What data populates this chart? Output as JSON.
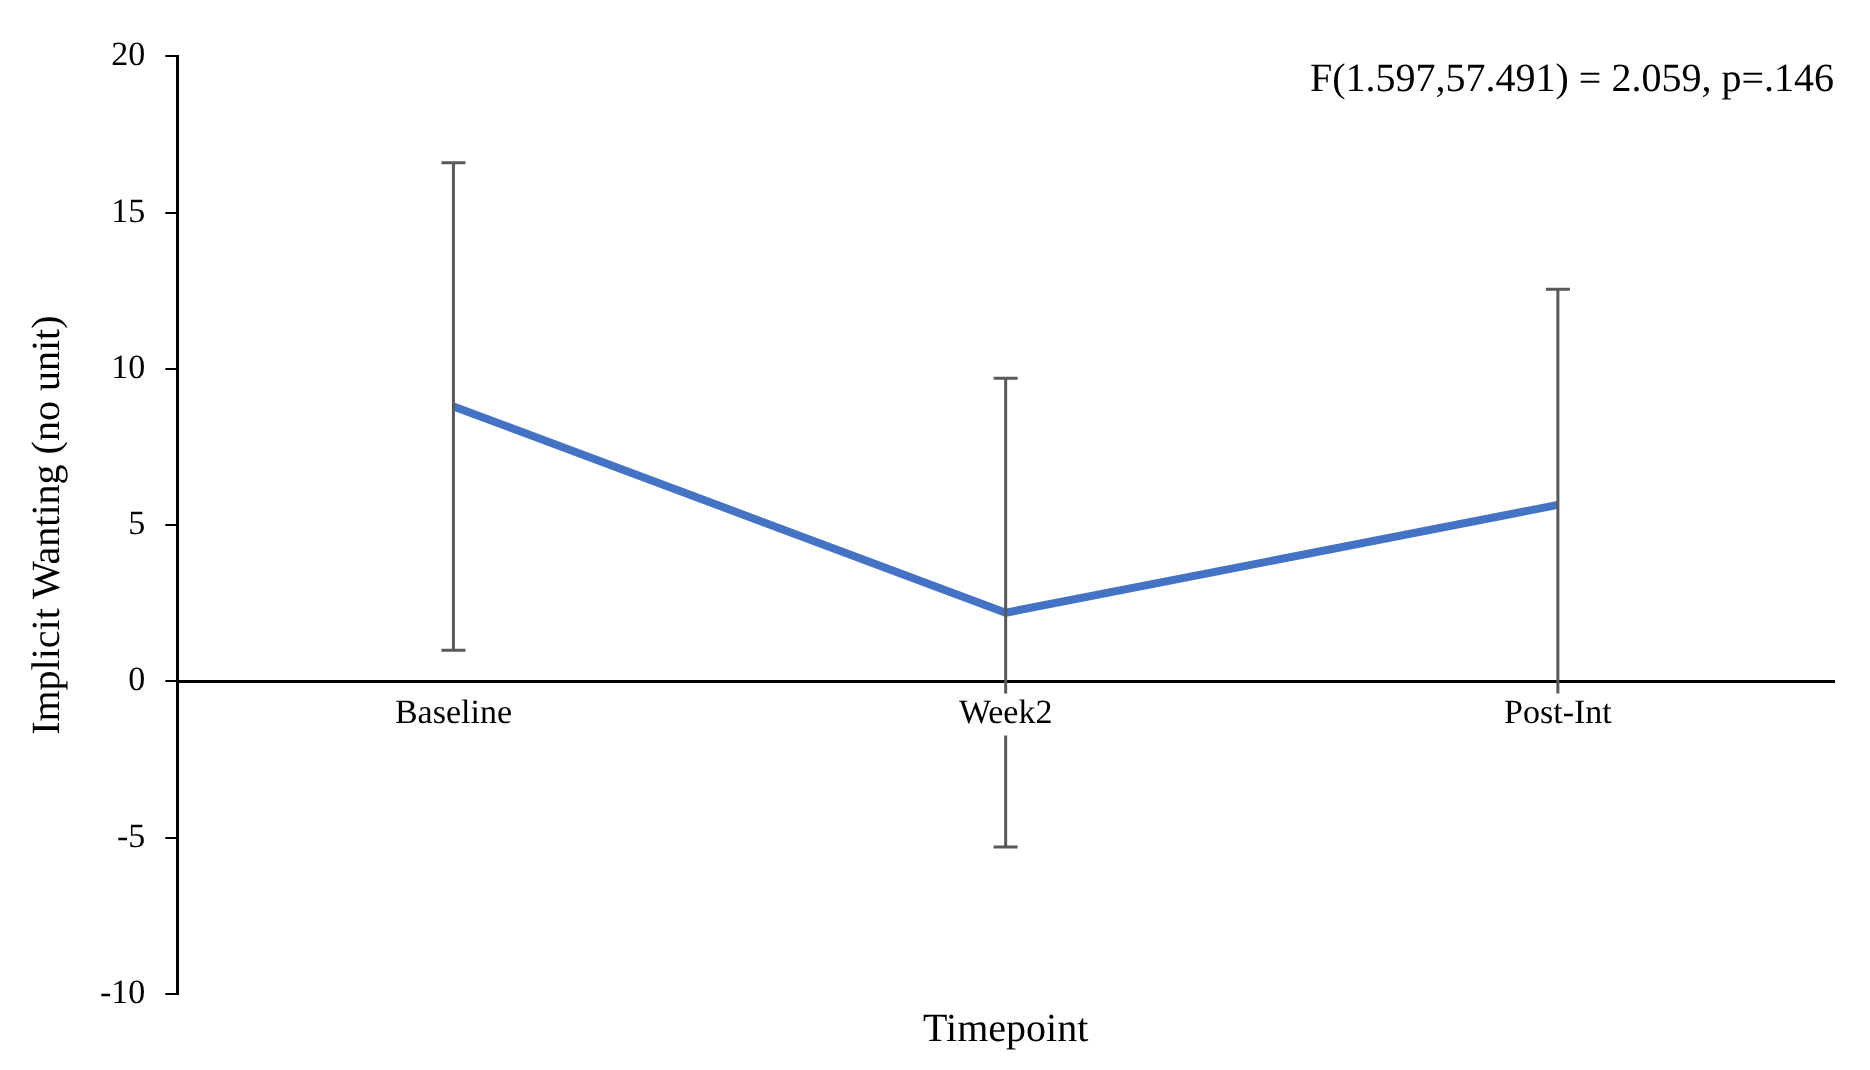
{
  "chart_data": {
    "type": "line",
    "xlabel": "Timepoint",
    "ylabel": "Implicit Wanting (no unit)",
    "annotations": [
      "F(1.597,57.491) = 2.059, p=.146"
    ],
    "categories": [
      "Baseline",
      "Week2",
      "Post-Int"
    ],
    "series": [
      {
        "color": "#4472c4",
        "values": [
          8.8,
          2.2,
          5.65
        ],
        "errors": [
          7.8,
          7.5,
          6.9
        ]
      }
    ],
    "ylim": [
      -10,
      20
    ],
    "yticks": [
      -10,
      -5,
      0,
      5,
      10,
      15,
      20
    ],
    "grid": false,
    "legend": false,
    "marker": "none"
  }
}
